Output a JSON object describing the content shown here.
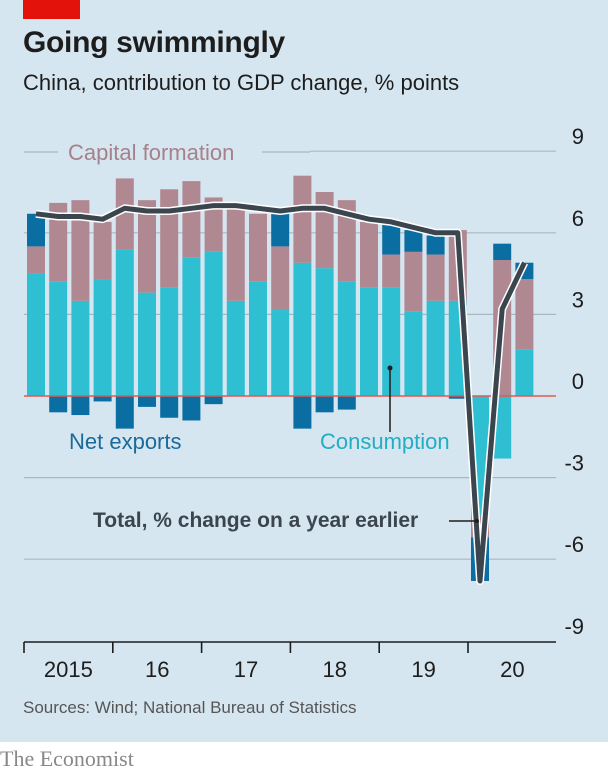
{
  "header": {
    "title": "Going swimmingly",
    "subtitle": "China, contribution to GDP change, % points"
  },
  "footer": {
    "source": "Sources: Wind; National Bureau of Statistics",
    "brand": "The Economist"
  },
  "colors": {
    "background": "#d6e6f0",
    "brand_red": "#e3120b",
    "consumption": "#2fbfd3",
    "capital_formation": "#b08891",
    "net_exports": "#0b6ea3",
    "total_line": "#3b454e",
    "zero_line": "#e05a4f",
    "gridline": "#a9b7c0"
  },
  "chart_data": {
    "type": "bar",
    "stacked": true,
    "title": "Going swimmingly",
    "subtitle": "China, contribution to GDP change, % points",
    "xlabel": "",
    "ylabel": "% points",
    "ylim": [
      -9,
      9
    ],
    "yticks": [
      9,
      6,
      3,
      0,
      -3,
      -6,
      -9
    ],
    "ytick_labels": [
      "9",
      "6",
      "3",
      "0",
      "-3",
      "-6",
      "-9"
    ],
    "grid": true,
    "x_year_labels": [
      "2015",
      "16",
      "17",
      "18",
      "19",
      "20"
    ],
    "categories": [
      "2015Q1",
      "2015Q2",
      "2015Q3",
      "2015Q4",
      "2016Q1",
      "2016Q2",
      "2016Q3",
      "2016Q4",
      "2017Q1",
      "2017Q2",
      "2017Q3",
      "2017Q4",
      "2018Q1",
      "2018Q2",
      "2018Q3",
      "2018Q4",
      "2019Q1",
      "2019Q2",
      "2019Q3",
      "2019Q4",
      "2020Q1",
      "2020Q2",
      "2020Q3"
    ],
    "series": [
      {
        "name": "Consumption",
        "kind": "bar",
        "values": [
          4.5,
          4.2,
          3.5,
          4.3,
          5.4,
          3.8,
          4.0,
          5.1,
          5.3,
          3.5,
          4.2,
          3.2,
          4.9,
          4.7,
          4.2,
          4.0,
          4.0,
          3.1,
          3.5,
          3.5,
          -4.4,
          -2.3,
          1.7
        ]
      },
      {
        "name": "Capital formation",
        "kind": "bar",
        "values": [
          1.0,
          2.9,
          3.7,
          2.1,
          2.6,
          3.4,
          3.6,
          2.8,
          2.0,
          3.4,
          2.5,
          2.3,
          3.2,
          2.8,
          3.0,
          2.4,
          1.2,
          2.2,
          1.7,
          2.6,
          -0.8,
          5.0,
          2.6
        ]
      },
      {
        "name": "Net exports",
        "kind": "bar",
        "values": [
          1.2,
          -0.6,
          -0.7,
          -0.2,
          -1.2,
          -0.4,
          -0.8,
          -0.9,
          -0.3,
          0.0,
          0.0,
          1.2,
          -1.2,
          -0.6,
          -0.5,
          0.0,
          1.2,
          0.8,
          0.7,
          -0.1,
          -1.6,
          0.6,
          0.6
        ]
      },
      {
        "name": "Total, % change on a year earlier",
        "kind": "line",
        "values": [
          6.7,
          6.6,
          6.6,
          6.5,
          6.9,
          6.8,
          6.8,
          6.9,
          7.0,
          7.0,
          6.9,
          6.8,
          6.9,
          6.9,
          6.7,
          6.5,
          6.4,
          6.2,
          6.0,
          6.0,
          -6.8,
          3.2,
          4.9
        ]
      }
    ],
    "annotations": [
      "Capital formation",
      "Net exports",
      "Consumption",
      "Total, % change on a year earlier"
    ]
  }
}
